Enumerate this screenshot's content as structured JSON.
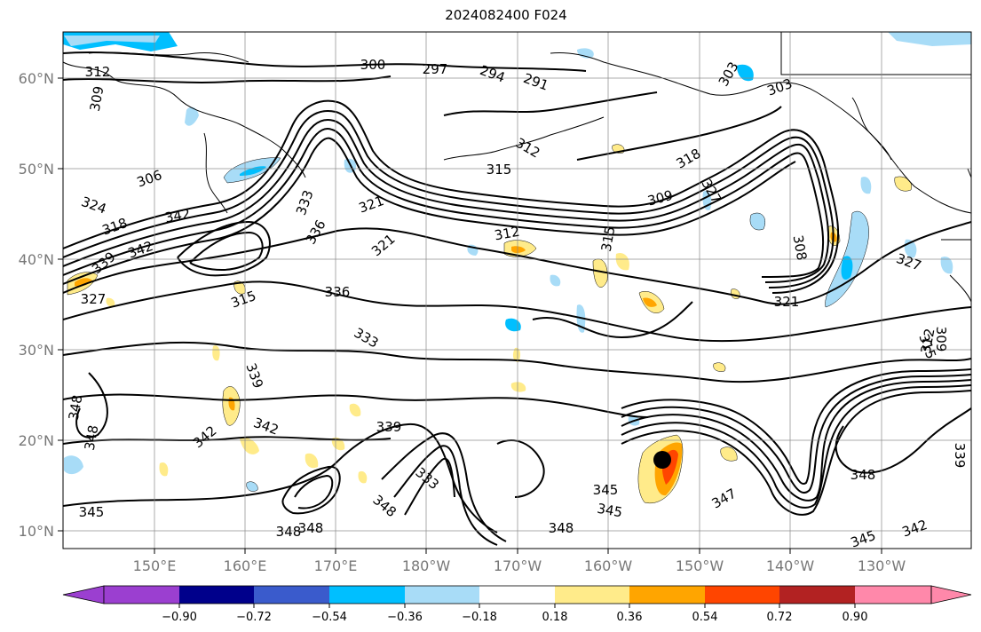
{
  "title": "2024082400 F024",
  "map": {
    "lon_range": [
      140,
      -122
    ],
    "lat_range": [
      8,
      65
    ],
    "lon_ticks": [
      "150°E",
      "160°E",
      "170°E",
      "180°W",
      "170°W",
      "160°W",
      "150°W",
      "140°W",
      "130°W"
    ],
    "lat_ticks": [
      "10°N",
      "20°N",
      "30°N",
      "40°N",
      "50°N",
      "60°N"
    ],
    "grid": true,
    "contour_labels": [
      "312",
      "309",
      "300",
      "297",
      "294",
      "291",
      "303",
      "303",
      "306",
      "312",
      "315",
      "318",
      "309",
      "324",
      "318",
      "342",
      "342",
      "339",
      "327",
      "333",
      "336",
      "321",
      "315",
      "321",
      "312",
      "315",
      "327",
      "321",
      "308",
      "327",
      "315",
      "312",
      "309",
      "336",
      "333",
      "339",
      "348",
      "348",
      "342",
      "342",
      "339",
      "333",
      "345",
      "345",
      "348",
      "348",
      "348",
      "348",
      "345",
      "347",
      "348",
      "345",
      "342",
      "339"
    ],
    "hurricane_marker": {
      "lon": -153,
      "lat": 17.8,
      "color": "#000000"
    }
  },
  "colorbar": {
    "tick_labels": [
      "−0.90",
      "−0.72",
      "−0.54",
      "−0.36",
      "−0.18",
      "0.18",
      "0.36",
      "0.54",
      "0.72",
      "0.90"
    ],
    "colors": [
      "#9b3fd0",
      "#00008b",
      "#3a5bcc",
      "#00bfff",
      "#a8dcf7",
      "#ffffff",
      "#ffeb8a",
      "#ffa500",
      "#ff4500",
      "#b22222",
      "#ff88aa"
    ],
    "extend": "both"
  }
}
